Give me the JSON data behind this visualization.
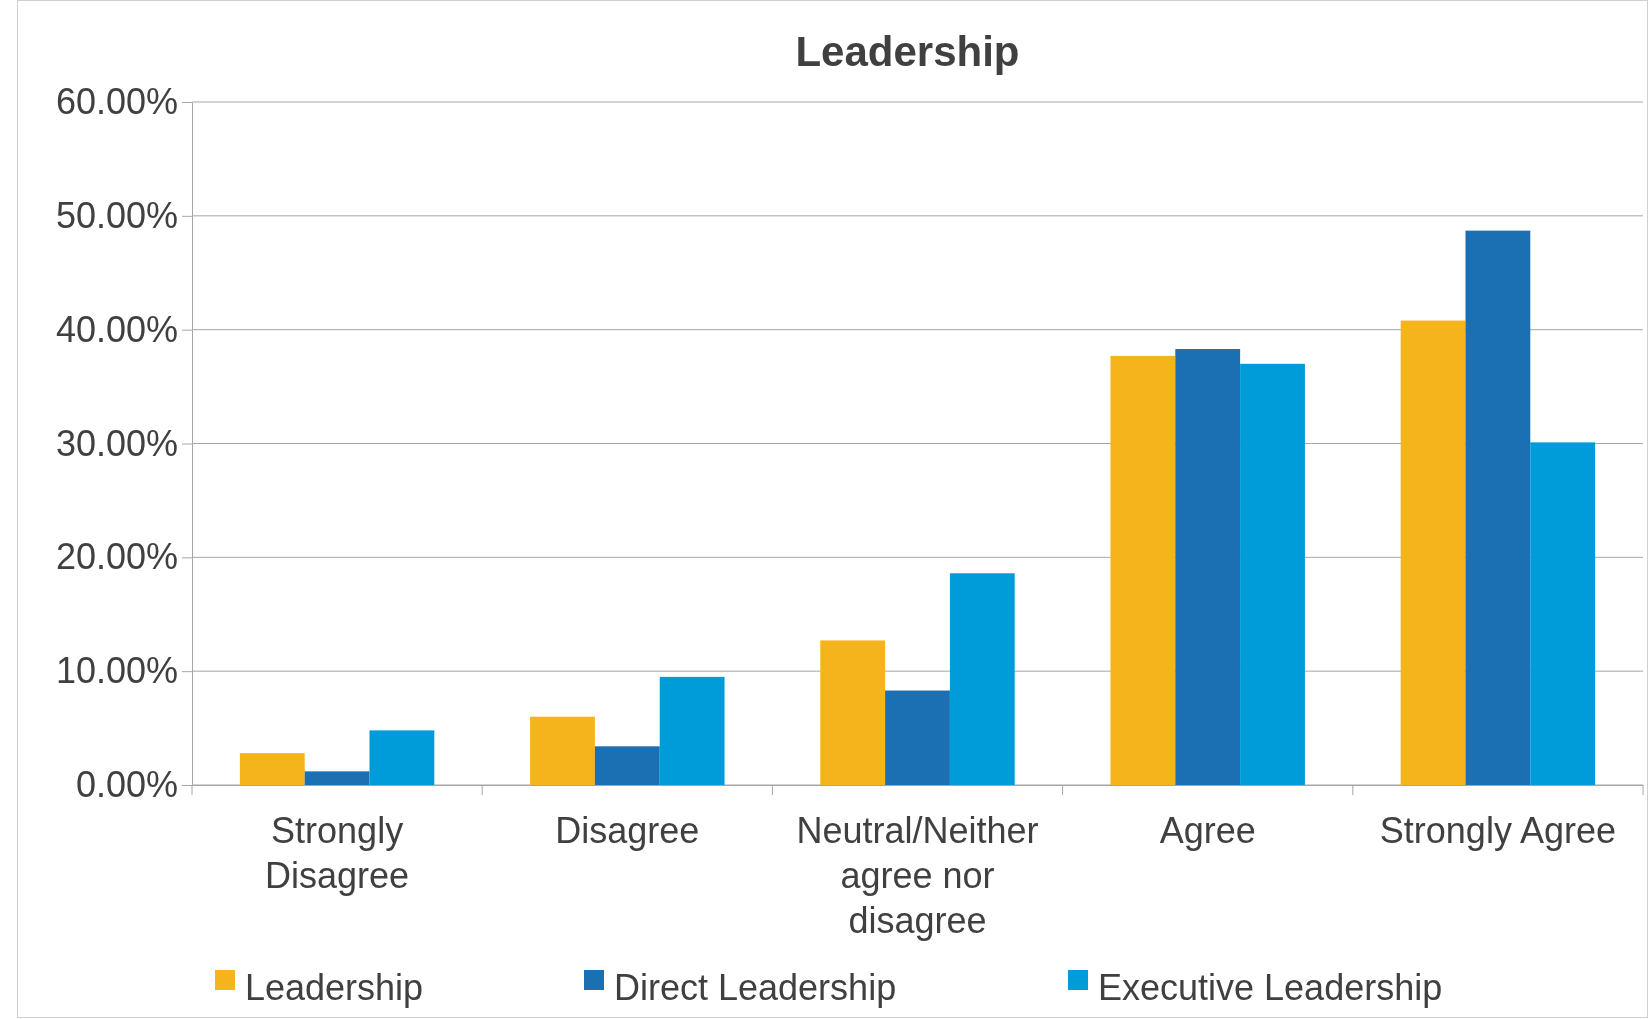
{
  "chart_data": {
    "type": "bar",
    "title": "Leadership",
    "categories": [
      "Strongly Disagree",
      "Disagree",
      "Neutral/Neither agree nor disagree",
      "Agree",
      "Strongly Agree"
    ],
    "series": [
      {
        "name": "Leadership",
        "color": "#f6b41c",
        "values": [
          2.8,
          6.0,
          12.7,
          37.7,
          40.8
        ]
      },
      {
        "name": "Direct Leadership",
        "color": "#1b70b4",
        "values": [
          1.2,
          3.4,
          8.3,
          38.3,
          48.7
        ]
      },
      {
        "name": "Executive Leadership",
        "color": "#009cd9",
        "values": [
          4.8,
          9.5,
          18.6,
          37.0,
          30.1
        ]
      }
    ],
    "ylim": [
      0,
      60
    ],
    "yticks": [
      {
        "value": 0,
        "label": "0.00%"
      },
      {
        "value": 10,
        "label": "10.00%"
      },
      {
        "value": 20,
        "label": "20.00%"
      },
      {
        "value": 30,
        "label": "30.00%"
      },
      {
        "value": 40,
        "label": "40.00%"
      },
      {
        "value": 50,
        "label": "50.00%"
      },
      {
        "value": 60,
        "label": "60.00%"
      }
    ],
    "grid": "y",
    "legend": "bottom"
  }
}
